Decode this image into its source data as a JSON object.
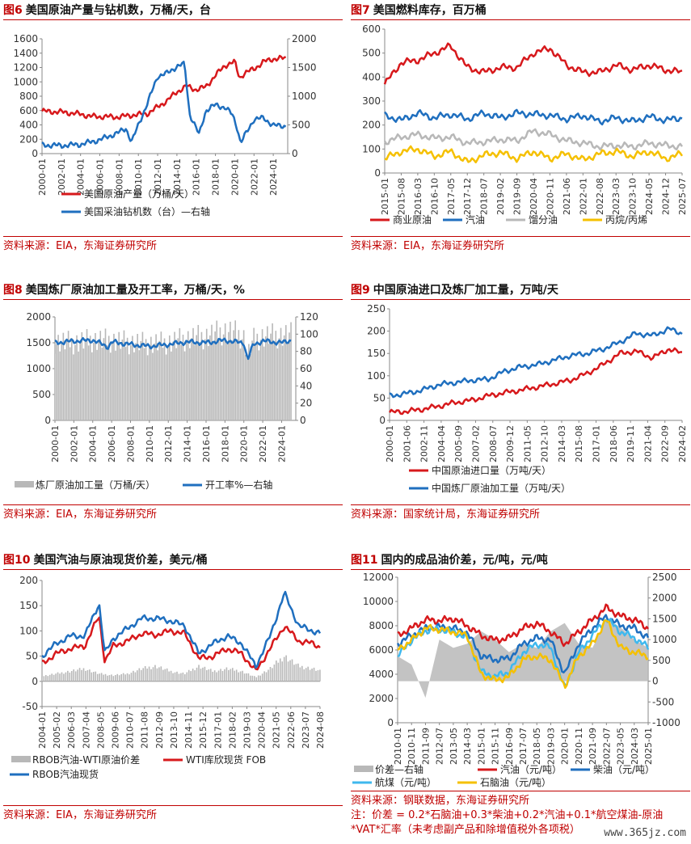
{
  "watermark": "www.365jz.com",
  "colors": {
    "red": "#d7191c",
    "blue": "#1f6fbf",
    "gray": "#b8b8b8",
    "yellow": "#f5c000",
    "lightblue": "#3fb8ee",
    "accent": "#c00000"
  },
  "panels": [
    {
      "fig": "图6",
      "title": "美国原油产量与钻机数，万桶/天，台",
      "source": "资料来源：EIA，东海证券研究所",
      "legend": [
        "美国原油产量（万桶/天）",
        "美国采油钻机数（台）—右轴"
      ]
    },
    {
      "fig": "图7",
      "title": "美国燃料库存，百万桶",
      "source": "资料来源：EIA，东海证券研究所",
      "legend": [
        "商业原油",
        "汽油",
        "馏分油",
        "丙烷/丙烯"
      ]
    },
    {
      "fig": "图8",
      "title": "美国炼厂原油加工量及开工率，万桶/天，%",
      "source": "资料来源：EIA，东海证券研究所",
      "legend": [
        "炼厂原油加工量（万桶/天）",
        "开工率%—右轴"
      ]
    },
    {
      "fig": "图9",
      "title": "中国原油进口及炼厂加工量，万吨/天",
      "source": "资料来源：国家统计局，东海证券研究所",
      "legend": [
        "中国原油进口量（万吨/天）",
        "中国炼厂原油加工量（万吨/天）"
      ]
    },
    {
      "fig": "图10",
      "title": "美国汽油与原油现货价差，美元/桶",
      "source": "资料来源：EIA，东海证券研究所",
      "legend": [
        "RBOB汽油-WTI原油价差",
        "WTI库欣现货 FOB",
        "RBOB汽油现货"
      ]
    },
    {
      "fig": "图11",
      "title": "国内的成品油价差，元/吨，元/吨",
      "source": "资料来源：钢联数据，东海证券研究所",
      "note": "注：价差 = 0.2*石脑油+0.3*柴油+0.2*汽油+0.1*航空煤油-原油*VAT*汇率（未考虑副产品和除增值税外各项税）",
      "legend": [
        "价差—右轴",
        "汽油（元/吨）",
        "柴油（元/吨）",
        "航煤（元/吨）",
        "石脑油（元/吨）"
      ]
    }
  ],
  "chart_data": [
    {
      "type": "line",
      "xlabels": [
        "2000-01",
        "2002-01",
        "2004-01",
        "2006-01",
        "2008-01",
        "2010-01",
        "2012-01",
        "2014-01",
        "2016-01",
        "2018-01",
        "2020-01",
        "2022-01",
        "2024-01"
      ],
      "yticks_left": [
        "0",
        "200",
        "400",
        "600",
        "800",
        "1000",
        "1200",
        "1400",
        "1600"
      ],
      "yticks_right": [
        "0",
        "500",
        "1000",
        "1500",
        "2000"
      ],
      "ylim": [
        0,
        1600
      ],
      "ylim_right": [
        0,
        2000
      ],
      "series": [
        {
          "name": "美国原油产量（万桶/天）",
          "axis": "left",
          "x": [
            2000,
            2002,
            2004,
            2005,
            2006,
            2008,
            2009,
            2010,
            2011,
            2012,
            2013,
            2014,
            2015,
            2016,
            2017,
            2018,
            2019,
            2020,
            2020.5,
            2021,
            2022,
            2023,
            2024,
            2025.3
          ],
          "values": [
            590,
            580,
            550,
            520,
            515,
            510,
            530,
            545,
            560,
            650,
            740,
            860,
            940,
            890,
            930,
            1090,
            1230,
            1280,
            1050,
            1120,
            1180,
            1280,
            1320,
            1330
          ]
        },
        {
          "name": "美国采油钻机数（台）—右轴",
          "axis": "right",
          "x": [
            2000,
            2002,
            2004,
            2006,
            2008,
            2008.7,
            2009.3,
            2010,
            2011,
            2012,
            2013,
            2014,
            2014.8,
            2015.3,
            2016.3,
            2017,
            2018,
            2019,
            2019.8,
            2020.3,
            2020.6,
            2021,
            2022,
            2023,
            2024,
            2025.3
          ],
          "values": [
            150,
            140,
            160,
            240,
            370,
            440,
            200,
            500,
            900,
            1350,
            1400,
            1520,
            1560,
            700,
            330,
            750,
            850,
            800,
            670,
            430,
            180,
            300,
            600,
            620,
            490,
            480
          ]
        }
      ]
    },
    {
      "type": "line",
      "xlabels": [
        "2015-01",
        "2015-08",
        "2016-03",
        "2016-10",
        "2017-05",
        "2017-12",
        "2018-07",
        "2019-02",
        "2019-09",
        "2020-04",
        "2020-11",
        "2021-06",
        "2022-01",
        "2022-08",
        "2023-03",
        "2023-10",
        "2024-05",
        "2024-12",
        "2025-07"
      ],
      "yticks_left": [
        "0",
        "100",
        "200",
        "300",
        "400",
        "500",
        "600"
      ],
      "ylim": [
        0,
        600
      ],
      "series": [
        {
          "name": "商业原油",
          "x": [
            0,
            1,
            2,
            3,
            4,
            5,
            6,
            7,
            8,
            9,
            10,
            11,
            12,
            13,
            14,
            15,
            16,
            17,
            18
          ],
          "values": [
            370,
            460,
            470,
            500,
            530,
            440,
            420,
            440,
            440,
            500,
            520,
            450,
            420,
            420,
            450,
            430,
            450,
            430,
            420
          ]
        },
        {
          "name": "汽油",
          "x": [
            0,
            1,
            2,
            3,
            4,
            5,
            6,
            7,
            8,
            9,
            10,
            11,
            12,
            13,
            14,
            15,
            16,
            17,
            18
          ],
          "values": [
            240,
            220,
            250,
            230,
            245,
            225,
            250,
            230,
            250,
            245,
            240,
            225,
            240,
            215,
            230,
            215,
            235,
            220,
            230
          ]
        },
        {
          "name": "馏分油",
          "x": [
            0,
            1,
            2,
            3,
            4,
            5,
            6,
            7,
            8,
            9,
            10,
            11,
            12,
            13,
            14,
            15,
            16,
            17,
            18
          ],
          "values": [
            130,
            150,
            160,
            145,
            150,
            125,
            130,
            140,
            135,
            175,
            160,
            135,
            125,
            110,
            115,
            110,
            125,
            115,
            110
          ]
        },
        {
          "name": "丙烷/丙烯",
          "x": [
            0,
            1,
            2,
            3,
            4,
            5,
            6,
            7,
            8,
            9,
            10,
            11,
            12,
            13,
            14,
            15,
            16,
            17,
            18
          ],
          "values": [
            60,
            90,
            100,
            70,
            90,
            45,
            75,
            85,
            60,
            90,
            60,
            80,
            55,
            80,
            90,
            70,
            90,
            60,
            80
          ]
        }
      ]
    },
    {
      "type": "bar+line",
      "xlabels": [
        "2000-01",
        "2002-01",
        "2004-01",
        "2006-01",
        "2008-01",
        "2010-01",
        "2012-01",
        "2014-01",
        "2016-01",
        "2018-01",
        "2020-01",
        "2022-01",
        "2024-01"
      ],
      "yticks_left": [
        "0",
        "500",
        "1000",
        "1500",
        "2000"
      ],
      "yticks_right": [
        "0",
        "20",
        "40",
        "60",
        "80",
        "100",
        "120"
      ],
      "ylim": [
        0,
        2000
      ],
      "ylim_right": [
        0,
        120
      ],
      "series": [
        {
          "name": "炼厂原油加工量（万桶/天）",
          "axis": "left",
          "x": [
            2000,
            2002,
            2004,
            2006,
            2008,
            2010,
            2012,
            2014,
            2016,
            2018,
            2019,
            2020,
            2020.4,
            2021,
            2022,
            2024,
            2025
          ],
          "values": [
            1520,
            1500,
            1550,
            1540,
            1500,
            1480,
            1500,
            1580,
            1620,
            1720,
            1690,
            1600,
            1250,
            1550,
            1620,
            1640,
            1650
          ]
        },
        {
          "name": "开工率%—右轴",
          "axis": "right",
          "x": [
            2000,
            2002,
            2004,
            2005.7,
            2006,
            2008,
            2010,
            2012,
            2014,
            2016,
            2018,
            2019,
            2020,
            2020.4,
            2021,
            2022,
            2024,
            2025
          ],
          "values": [
            90,
            92,
            93,
            85,
            91,
            88,
            86,
            88,
            91,
            90,
            93,
            91,
            90,
            70,
            88,
            92,
            90,
            93
          ]
        }
      ]
    },
    {
      "type": "line",
      "xlabels": [
        "2000-01",
        "2001-06",
        "2002-11",
        "2004-04",
        "2005-09",
        "2007-02",
        "2008-07",
        "2009-12",
        "2011-05",
        "2012-10",
        "2014-03",
        "2015-08",
        "2017-01",
        "2018-06",
        "2019-11",
        "2021-04",
        "2022-09",
        "2024-02"
      ],
      "yticks_left": [
        "0",
        "50",
        "100",
        "150",
        "200",
        "250"
      ],
      "ylim": [
        0,
        250
      ],
      "series": [
        {
          "name": "中国原油进口量（万吨/天）",
          "x": [
            0,
            1,
            2,
            3,
            4,
            5,
            6,
            7,
            8,
            9,
            10,
            11,
            12,
            13,
            14,
            15,
            16,
            17,
            17.8
          ],
          "values": [
            18,
            20,
            25,
            32,
            40,
            45,
            55,
            62,
            68,
            75,
            82,
            90,
            105,
            125,
            150,
            155,
            140,
            160,
            150
          ]
        },
        {
          "name": "中国炼厂原油加工量（万吨/天）",
          "x": [
            0,
            1,
            2,
            3,
            4,
            5,
            6,
            7,
            8,
            9,
            10,
            11,
            12,
            13,
            14,
            15,
            16,
            17,
            17.8
          ],
          "values": [
            55,
            60,
            68,
            80,
            85,
            90,
            92,
            110,
            120,
            125,
            135,
            145,
            150,
            160,
            175,
            195,
            190,
            205,
            195
          ]
        }
      ]
    },
    {
      "type": "bar+line",
      "xlabels": [
        "2004-01",
        "2005-02",
        "2006-03",
        "2007-04",
        "2008-05",
        "2009-06",
        "2010-07",
        "2011-08",
        "2012-09",
        "2013-10",
        "2014-11",
        "2015-12",
        "2017-01",
        "2018-02",
        "2019-03",
        "2020-04",
        "2021-05",
        "2022-06",
        "2023-07",
        "2024-08"
      ],
      "yticks_left": [
        "-50",
        "0",
        "50",
        "100",
        "150",
        "200"
      ],
      "ylim": [
        -50,
        200
      ],
      "series": [
        {
          "name": "RBOB汽油-WTI原油价差",
          "type": "bar",
          "x": [
            0,
            1,
            2,
            3,
            4,
            5,
            6,
            7,
            8,
            9,
            10,
            11,
            12,
            13,
            14,
            15,
            16,
            17,
            18,
            19,
            19.5
          ],
          "values": [
            10,
            15,
            20,
            25,
            15,
            12,
            15,
            25,
            30,
            20,
            15,
            30,
            20,
            25,
            20,
            8,
            25,
            50,
            30,
            25,
            20
          ]
        },
        {
          "name": "WTI库欣现货 FOB",
          "x": [
            0,
            1,
            2,
            3,
            4,
            4.4,
            5,
            6,
            7,
            8,
            9,
            10,
            11,
            12,
            13,
            14,
            15,
            16,
            17,
            18,
            19,
            19.5
          ],
          "values": [
            35,
            55,
            65,
            70,
            130,
            40,
            70,
            80,
            95,
            92,
            100,
            95,
            45,
            50,
            65,
            55,
            20,
            65,
            110,
            80,
            75,
            68
          ]
        },
        {
          "name": "RBOB汽油现货",
          "x": [
            0,
            1,
            2,
            3,
            4,
            4.4,
            5,
            6,
            7,
            8,
            9,
            10,
            11,
            12,
            13,
            14,
            15,
            16,
            17,
            18,
            19,
            19.5
          ],
          "values": [
            50,
            75,
            90,
            90,
            155,
            55,
            85,
            105,
            125,
            125,
            120,
            110,
            55,
            75,
            90,
            75,
            30,
            90,
            175,
            110,
            100,
            95
          ]
        }
      ]
    },
    {
      "type": "area+line",
      "xlabels": [
        "2010-01",
        "2010-11",
        "2011-09",
        "2012-07",
        "2013-05",
        "2014-03",
        "2015-01",
        "2015-11",
        "2016-09",
        "2017-07",
        "2018-05",
        "2019-03",
        "2020-01",
        "2020-11",
        "2021-09",
        "2022-07",
        "2023-05",
        "2024-03",
        "2025-01"
      ],
      "yticks_left": [
        "0",
        "2000",
        "4000",
        "6000",
        "8000",
        "10000",
        "12000"
      ],
      "yticks_right": [
        "-1000",
        "-500",
        "0",
        "500",
        "1000",
        "1500",
        "2000",
        "2500"
      ],
      "ylim": [
        0,
        12000
      ],
      "ylim_right": [
        -1000,
        2500
      ],
      "series": [
        {
          "name": "价差—右轴",
          "type": "area",
          "axis": "right",
          "x": [
            0,
            1,
            2,
            3,
            4,
            5,
            6,
            7,
            8,
            9,
            10,
            11,
            12,
            13,
            14,
            15,
            16,
            17,
            18
          ],
          "values": [
            600,
            400,
            -400,
            1000,
            800,
            900,
            1200,
            1000,
            700,
            900,
            800,
            1200,
            1400,
            900,
            800,
            1500,
            1300,
            1000,
            800
          ]
        },
        {
          "name": "汽油（元/吨）",
          "axis": "left",
          "x": [
            0,
            1,
            2,
            3,
            4,
            5,
            6,
            7,
            8,
            9,
            10,
            11,
            12,
            13,
            14,
            15,
            16,
            17,
            18
          ],
          "values": [
            7200,
            7800,
            8500,
            8400,
            8600,
            8000,
            7200,
            6800,
            7000,
            7800,
            8200,
            7500,
            6500,
            7500,
            8500,
            9500,
            8800,
            8500,
            7800
          ]
        },
        {
          "name": "柴油（元/吨）",
          "axis": "left",
          "x": [
            0,
            1,
            2,
            3,
            4,
            5,
            6,
            7,
            8,
            9,
            10,
            11,
            12,
            13,
            14,
            15,
            16,
            17,
            18
          ],
          "values": [
            6500,
            7200,
            7800,
            7900,
            7800,
            7400,
            5500,
            5200,
            5300,
            6500,
            7000,
            6800,
            4000,
            6500,
            7800,
            8800,
            8000,
            7800,
            7000
          ]
        },
        {
          "name": "航煤（元/吨）",
          "axis": "left",
          "x": [
            0,
            1,
            2,
            3,
            4,
            5,
            6,
            7,
            8,
            9,
            10,
            11,
            12,
            13,
            14,
            15,
            16,
            17,
            18
          ],
          "values": [
            5500,
            6800,
            7600,
            7700,
            7500,
            7000,
            4200,
            3800,
            4200,
            5800,
            6500,
            6200,
            2800,
            5800,
            7200,
            8600,
            7500,
            7000,
            6200
          ]
        },
        {
          "name": "石脑油（元/吨）",
          "axis": "left",
          "x": [
            0,
            1,
            2,
            3,
            4,
            5,
            6,
            7,
            8,
            9,
            10,
            11,
            12,
            13,
            14,
            15,
            16,
            17,
            18
          ],
          "values": [
            6000,
            6800,
            7800,
            7700,
            7500,
            7200,
            4000,
            3500,
            3800,
            5200,
            5500,
            5200,
            3000,
            5500,
            6500,
            8500,
            6200,
            5800,
            5500
          ]
        }
      ]
    }
  ]
}
